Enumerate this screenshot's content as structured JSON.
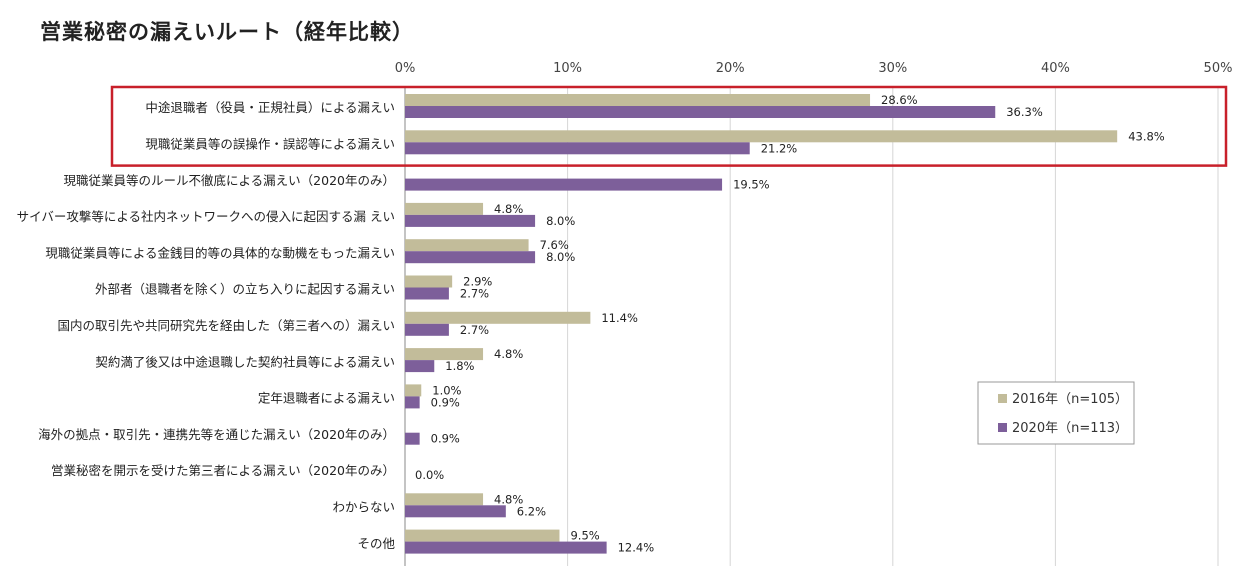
{
  "chart_data": {
    "type": "bar",
    "orientation": "horizontal",
    "title": "営業秘密の漏えいルート（経年比較）",
    "xlim": [
      0,
      50
    ],
    "xticks": [
      "0%",
      "10%",
      "20%",
      "30%",
      "40%",
      "50%"
    ],
    "categories": [
      "中途退職者（役員・正規社員）による漏えい",
      "現職従業員等の誤操作・誤認等による漏えい",
      "現職従業員等のルール不徹底による漏えい（2020年のみ）",
      "サイバー攻撃等による社内ネットワークへの侵入に起因する漏 えい",
      "現職従業員等による金銭目的等の具体的な動機をもった漏えい",
      "外部者（退職者を除く）の立ち入りに起因する漏えい",
      "国内の取引先や共同研究先を経由した（第三者への）漏えい",
      "契約満了後又は中途退職した契約社員等による漏えい",
      "定年退職者による漏えい",
      "海外の拠点・取引先・連携先等を通じた漏えい（2020年のみ）",
      "営業秘密を開示を受けた第三者による漏えい（2020年のみ）",
      "わからない",
      "その他"
    ],
    "series": [
      {
        "name": "2016年（n=105）",
        "color": "#c2bc9a",
        "values": [
          28.6,
          43.8,
          null,
          4.8,
          7.6,
          2.9,
          11.4,
          4.8,
          1.0,
          null,
          null,
          4.8,
          9.5
        ],
        "labels": [
          "28.6%",
          "43.8%",
          null,
          "4.8%",
          "7.6%",
          "2.9%",
          "11.4%",
          "4.8%",
          "1.0%",
          null,
          null,
          "4.8%",
          "9.5%"
        ]
      },
      {
        "name": "2020年（n=113）",
        "color": "#7d5f9a",
        "values": [
          36.3,
          21.2,
          19.5,
          8.0,
          8.0,
          2.7,
          2.7,
          1.8,
          0.9,
          0.9,
          0.0,
          6.2,
          12.4
        ],
        "labels": [
          "36.3%",
          "21.2%",
          "19.5%",
          "8.0%",
          "8.0%",
          "2.7%",
          "2.7%",
          "1.8%",
          "0.9%",
          "0.9%",
          "0.0%",
          "6.2%",
          "12.4%"
        ]
      }
    ],
    "highlight": {
      "categories": [
        0,
        1
      ],
      "color": "#c8202a"
    },
    "legend": {
      "placement": "right-middle"
    }
  }
}
